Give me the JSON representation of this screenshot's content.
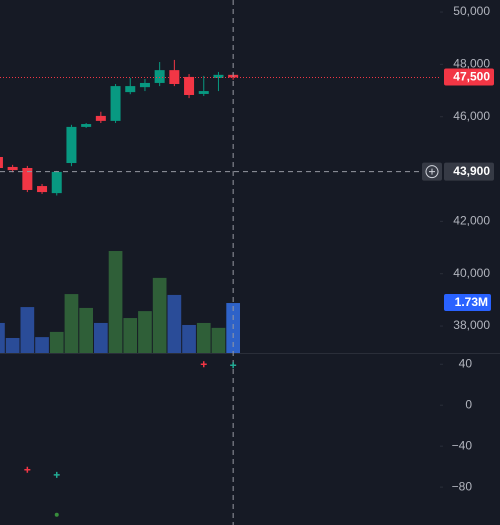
{
  "chart_data": [
    {
      "type": "candlestick",
      "open": [
        44460,
        44080,
        44040,
        43350,
        43080,
        44230,
        45610,
        46030,
        45840,
        46940,
        47130,
        47290,
        47780,
        47520,
        46870,
        47480,
        47600
      ],
      "high": [
        44540,
        44160,
        44120,
        43430,
        43930,
        45690,
        45760,
        46190,
        47250,
        47480,
        47440,
        48090,
        48170,
        47630,
        47560,
        47710,
        47670
      ],
      "low": [
        43960,
        43880,
        43120,
        43050,
        42990,
        44110,
        45570,
        45760,
        45760,
        46860,
        46980,
        47170,
        47170,
        46710,
        46790,
        46980,
        47410
      ],
      "close": [
        44040,
        43960,
        43200,
        43120,
        43890,
        45610,
        45720,
        45840,
        47170,
        47170,
        47290,
        47780,
        47250,
        46830,
        46980,
        47600,
        47500
      ],
      "up_color": "#089981",
      "down_color": "#f23645",
      "xlim": [
        0.14,
        30.07
      ],
      "ylim": [
        36970,
        50460
      ],
      "yticks": [
        {
          "value": 38000,
          "label": "38,000"
        },
        {
          "value": 40000,
          "label": "40,000"
        },
        {
          "value": 42000,
          "label": "42,000"
        },
        {
          "value": 46000,
          "label": "46,000"
        },
        {
          "value": 48000,
          "label": "48,000"
        },
        {
          "value": 50000,
          "label": "50,000"
        }
      ],
      "volume": {
        "values": [
          1.04,
          0.52,
          1.59,
          0.55,
          0.73,
          2.04,
          1.56,
          1.04,
          3.53,
          1.21,
          1.45,
          2.6,
          2.01,
          0.97,
          1.04,
          0.87,
          1.73
        ],
        "ylim": [
          0,
          3.6
        ],
        "up_color": "#2f5f38",
        "down_color": "#2a4c98",
        "last_color": "#2e62c8",
        "last_value_label": "1.73M"
      },
      "last_price": {
        "value": 47500,
        "label": "47,500"
      },
      "crosshair": {
        "x": 16,
        "value": 43900,
        "label": "43,900"
      }
    },
    {
      "type": "scatter",
      "xlim": [
        0.14,
        30.07
      ],
      "ylim": [
        -117,
        51
      ],
      "yticks": [
        40,
        0,
        {
          "value": -40,
          "label": "−40"
        },
        {
          "value": -80,
          "label": "−80"
        }
      ],
      "series": [
        {
          "color": "#f23645",
          "marker": "cross",
          "x": [
            2,
            14
          ],
          "values": [
            -63,
            40
          ]
        },
        {
          "color": "#22ab94",
          "marker": "cross",
          "x": [
            4,
            16
          ],
          "values": [
            -68,
            39
          ]
        },
        {
          "color": "#388e3c",
          "marker": "dot",
          "x": [
            4
          ],
          "values": [
            -107
          ]
        }
      ]
    }
  ]
}
